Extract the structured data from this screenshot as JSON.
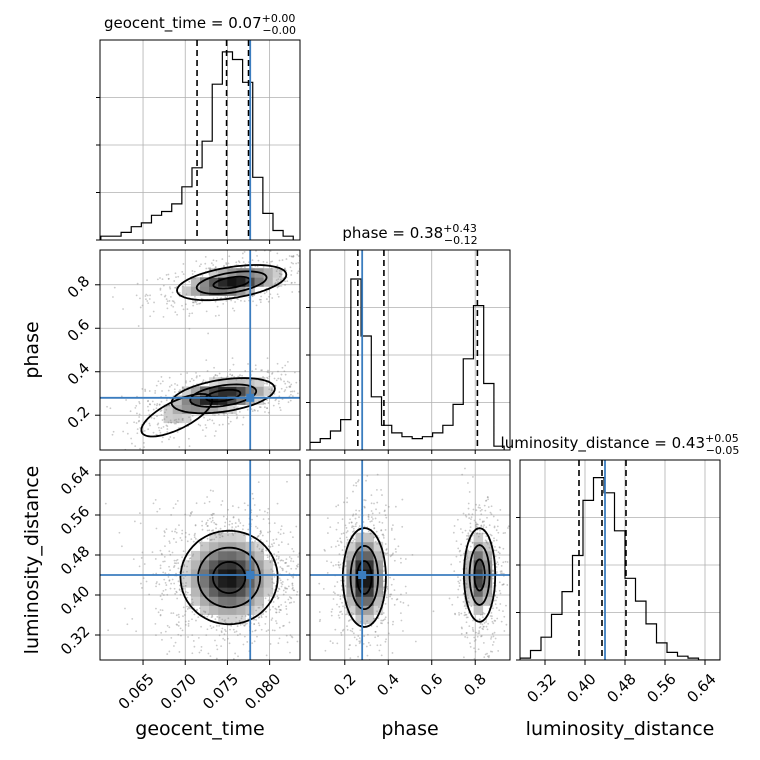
{
  "chart_data": {
    "type": "corner",
    "parameters": [
      "geocent_time",
      "phase",
      "luminosity_distance"
    ],
    "titles": [
      {
        "name": "geocent_time",
        "median": "0.07",
        "plus": "+0.00",
        "minus": "−0.00"
      },
      {
        "name": "phase",
        "median": "0.38",
        "plus": "+0.43",
        "minus": "−0.12"
      },
      {
        "name": "luminosity_distance",
        "median": "0.43",
        "plus": "+0.05",
        "minus": "−0.05"
      }
    ],
    "ranges": {
      "geocent_time": [
        0.0599,
        0.0836
      ],
      "phase": [
        0.04,
        0.96
      ],
      "luminosity_distance": [
        0.27,
        0.67
      ]
    },
    "ticks": {
      "geocent_time": [
        "0.065",
        "0.070",
        "0.075",
        "0.080"
      ],
      "phase": [
        "0.2",
        "0.4",
        "0.6",
        "0.8"
      ],
      "luminosity_distance": [
        "0.32",
        "0.40",
        "0.48",
        "0.56",
        "0.64"
      ]
    },
    "truth": {
      "geocent_time": 0.0777,
      "phase": 0.28,
      "luminosity_distance": 0.44
    },
    "quantiles": {
      "geocent_time": [
        0.0714,
        0.0749,
        0.0775
      ],
      "phase": [
        0.26,
        0.38,
        0.81
      ],
      "luminosity_distance": [
        0.388,
        0.434,
        0.482
      ]
    },
    "histograms": {
      "geocent_time": {
        "edges": [
          0.06,
          0.0612,
          0.0624,
          0.0636,
          0.0648,
          0.066,
          0.0672,
          0.0684,
          0.0696,
          0.0708,
          0.072,
          0.0732,
          0.0744,
          0.0756,
          0.0768,
          0.078,
          0.0792,
          0.0804,
          0.0816,
          0.0828
        ],
        "counts": [
          0.02,
          0.02,
          0.04,
          0.07,
          0.09,
          0.13,
          0.15,
          0.19,
          0.28,
          0.38,
          0.52,
          0.82,
          0.99,
          0.95,
          0.83,
          0.33,
          0.14,
          0.05,
          0.02
        ]
      },
      "phase": {
        "edges": [
          0.04,
          0.087,
          0.134,
          0.181,
          0.228,
          0.275,
          0.322,
          0.369,
          0.416,
          0.463,
          0.51,
          0.557,
          0.604,
          0.651,
          0.698,
          0.745,
          0.792,
          0.839,
          0.886,
          0.933
        ],
        "counts": [
          0.04,
          0.06,
          0.1,
          0.16,
          0.9,
          0.6,
          0.28,
          0.13,
          0.09,
          0.07,
          0.06,
          0.07,
          0.09,
          0.13,
          0.24,
          0.48,
          0.76,
          0.35,
          0.02
        ]
      },
      "luminosity_distance": {
        "edges": [
          0.27,
          0.291,
          0.312,
          0.333,
          0.354,
          0.375,
          0.396,
          0.417,
          0.438,
          0.459,
          0.48,
          0.501,
          0.522,
          0.543,
          0.564,
          0.585,
          0.606,
          0.627,
          0.648,
          0.67
        ],
        "counts": [
          0.01,
          0.05,
          0.12,
          0.24,
          0.36,
          0.55,
          0.84,
          0.96,
          0.88,
          0.68,
          0.43,
          0.31,
          0.19,
          0.09,
          0.04,
          0.02,
          0.01,
          0.0,
          0.0
        ]
      }
    },
    "blobs": {
      "phase_vs_geocent_time": [
        {
          "x": 0.0755,
          "y": 0.81,
          "sx": 0.0036,
          "sy": 0.045,
          "r": 0.45,
          "w": 0.5
        },
        {
          "x": 0.0745,
          "y": 0.29,
          "sx": 0.0034,
          "sy": 0.045,
          "r": 0.4,
          "w": 0.5
        },
        {
          "x": 0.069,
          "y": 0.2,
          "sx": 0.003,
          "sy": 0.07,
          "r": 0.7,
          "w": 0.14
        }
      ],
      "luminosity_distance_vs_geocent_time": [
        {
          "x": 0.0752,
          "y": 0.435,
          "sx": 0.0032,
          "sy": 0.052,
          "r": 0.0,
          "w": 1.0
        }
      ],
      "luminosity_distance_vs_phase": [
        {
          "x": 0.29,
          "y": 0.435,
          "sx": 0.055,
          "sy": 0.055,
          "r": 0.0,
          "w": 0.55
        },
        {
          "x": 0.82,
          "y": 0.44,
          "sx": 0.04,
          "sy": 0.052,
          "r": 0.0,
          "w": 0.45
        }
      ]
    }
  }
}
